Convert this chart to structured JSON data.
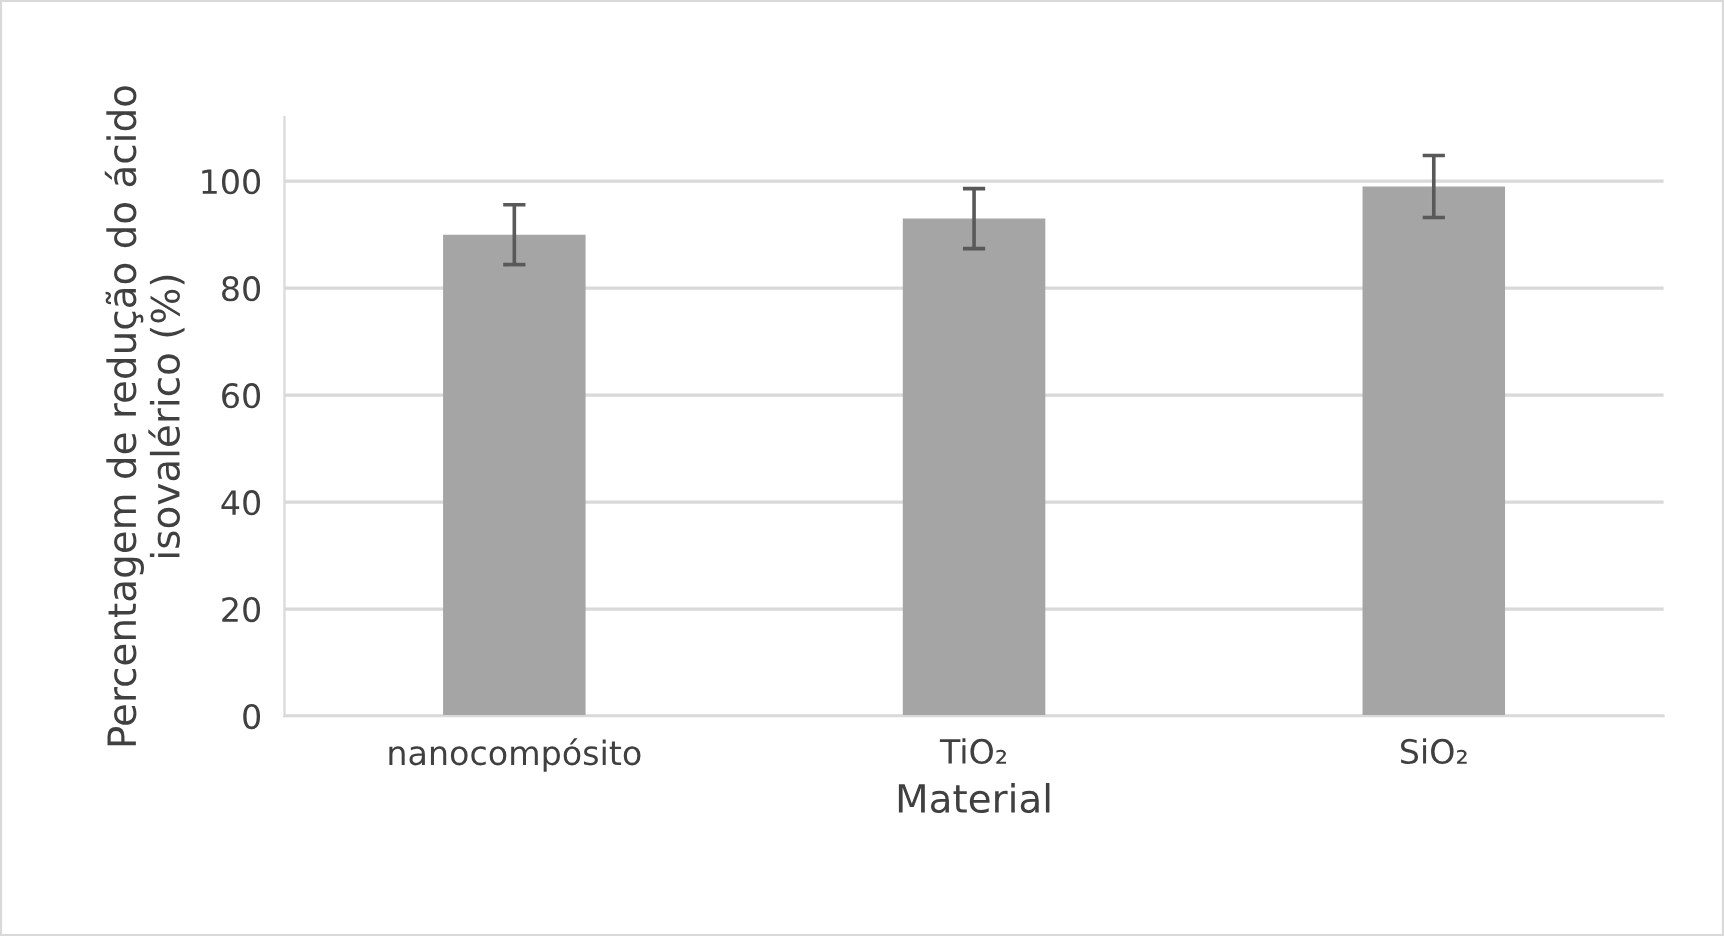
{
  "chart_data": {
    "type": "bar",
    "categories": [
      "nanocompósito",
      "TiO₂",
      "SiO₂"
    ],
    "values": [
      90.0,
      93.0,
      99.0
    ],
    "errors": [
      5.6,
      5.6,
      5.8
    ],
    "color": "#a5a5a5",
    "xlabel": "Material",
    "ylabel": "Percentagem de redução do ácido isovalérico (%)",
    "ylim": [
      0,
      112
    ],
    "yticks": [
      0,
      20,
      40,
      60,
      80,
      100
    ],
    "grid": "y"
  }
}
